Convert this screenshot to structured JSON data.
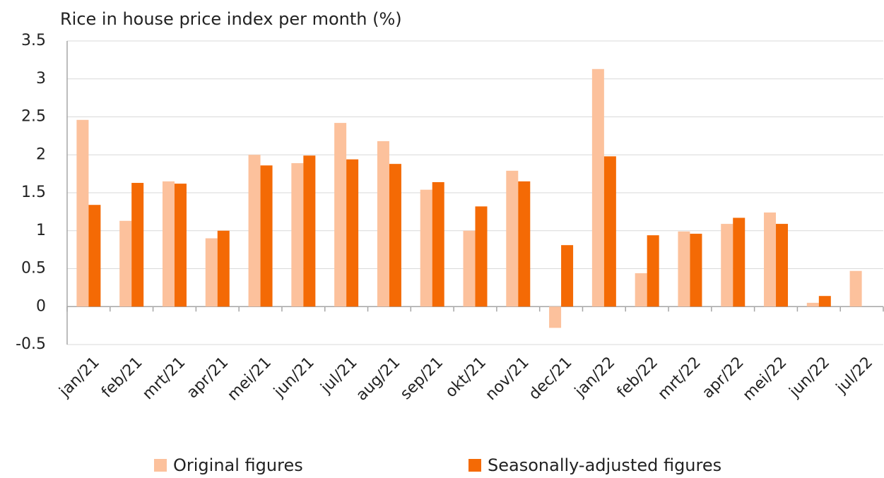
{
  "chart_data": {
    "type": "bar",
    "title": "Rice in house price index per month (%)",
    "categories": [
      "jan/21",
      "feb/21",
      "mrt/21",
      "apr/21",
      "mei/21",
      "jun/21",
      "jul/21",
      "aug/21",
      "sep/21",
      "okt/21",
      "nov/21",
      "dec/21",
      "jan/22",
      "feb/22",
      "mrt/22",
      "apr/22",
      "mei/22",
      "jun/22",
      "jul/22"
    ],
    "series": [
      {
        "name": "Original figures",
        "color": "#fcc19c",
        "values": [
          2.46,
          1.13,
          1.65,
          0.9,
          2.0,
          1.89,
          2.42,
          2.18,
          1.54,
          1.0,
          1.79,
          -0.28,
          3.13,
          0.44,
          0.99,
          1.09,
          1.24,
          0.05,
          0.47
        ]
      },
      {
        "name": "Seasonally-adjusted figures",
        "color": "#f46a05",
        "values": [
          1.34,
          1.63,
          1.62,
          1.0,
          1.86,
          1.99,
          1.94,
          1.88,
          1.64,
          1.32,
          1.65,
          0.81,
          1.98,
          0.94,
          0.96,
          1.17,
          1.09,
          0.14,
          null
        ]
      }
    ],
    "ylim": [
      -0.5,
      3.5
    ],
    "yticks": [
      -0.5,
      0,
      0.5,
      1,
      1.5,
      2,
      2.5,
      3,
      3.5
    ],
    "grid": true
  }
}
